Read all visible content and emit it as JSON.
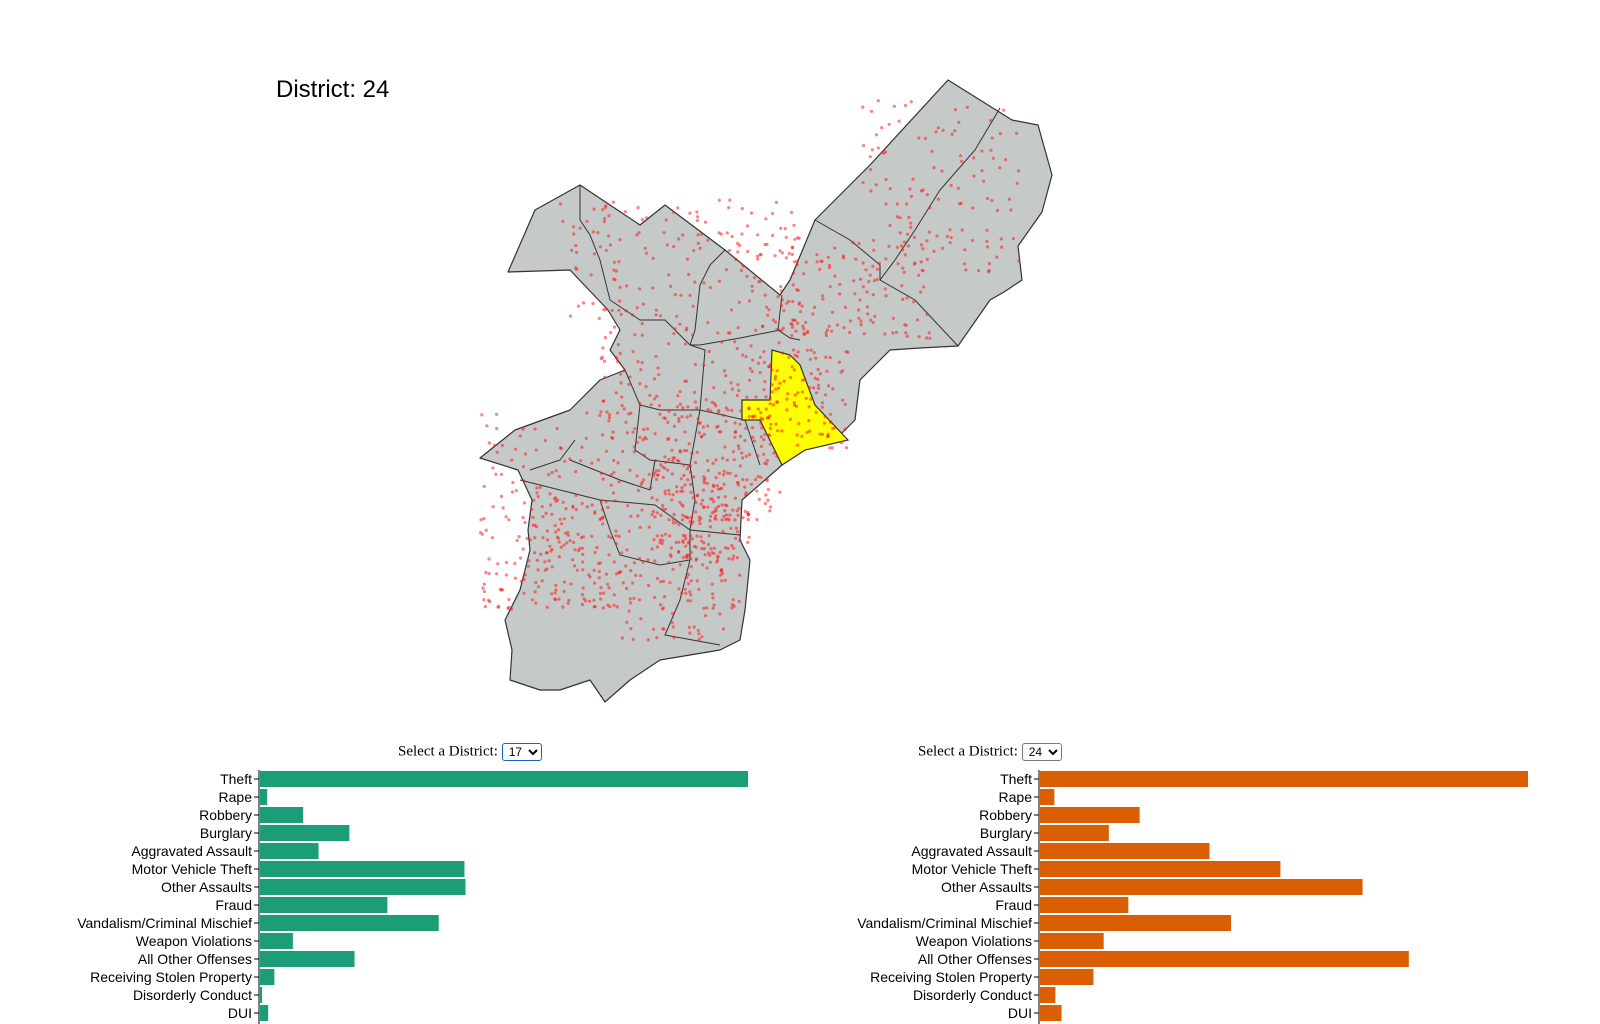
{
  "map": {
    "title_prefix": "District:",
    "highlighted_district": "24",
    "title": "District: 24",
    "colors": {
      "district_fill": "#c5c9c7",
      "highlight_fill": "#ffff00",
      "point_color": "#ff1a1a",
      "border": "#333333"
    }
  },
  "left_panel": {
    "select_label": "Select a District:",
    "selected_district": "17",
    "bar_color": "#1b9e77"
  },
  "right_panel": {
    "select_label": "Select a District:",
    "selected_district": "24",
    "bar_color": "#d95f02"
  },
  "chart_data": [
    {
      "type": "bar",
      "orientation": "horizontal",
      "district": "17",
      "categories": [
        "Theft",
        "Rape",
        "Robbery",
        "Burglary",
        "Aggravated Assault",
        "Motor Vehicle Theft",
        "Other Assaults",
        "Fraud",
        "Vandalism/Criminal Mischief",
        "Weapon Violations",
        "All Other Offenses",
        "Receiving Stolen Property",
        "Disorderly Conduct",
        "DUI"
      ],
      "values": [
        475,
        7,
        42,
        87,
        57,
        199,
        200,
        124,
        174,
        32,
        92,
        14,
        2,
        8
      ]
    },
    {
      "type": "bar",
      "orientation": "horizontal",
      "district": "24",
      "categories": [
        "Theft",
        "Rape",
        "Robbery",
        "Burglary",
        "Aggravated Assault",
        "Motor Vehicle Theft",
        "Other Assaults",
        "Fraud",
        "Vandalism/Criminal Mischief",
        "Weapon Violations",
        "All Other Offenses",
        "Receiving Stolen Property",
        "Disorderly Conduct",
        "DUI"
      ],
      "values": [
        475,
        14,
        97,
        67,
        165,
        234,
        314,
        86,
        186,
        62,
        359,
        52,
        15,
        21
      ]
    }
  ]
}
